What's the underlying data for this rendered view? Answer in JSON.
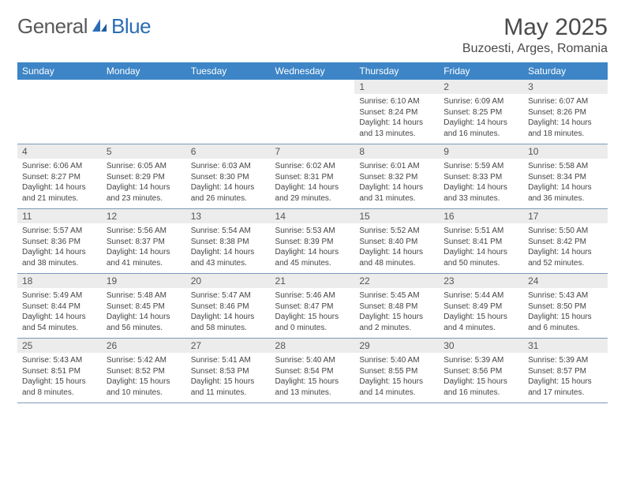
{
  "brand": {
    "general": "General",
    "blue": "Blue"
  },
  "title": "May 2025",
  "location": "Buzoesti, Arges, Romania",
  "colors": {
    "header_bg": "#3d85c6",
    "header_text": "#ffffff",
    "daynum_bg": "#ececec",
    "grid_line": "#7a99b8",
    "body_text": "#444444",
    "logo_gray": "#5a5a5a",
    "logo_blue": "#2a6db5",
    "page_bg": "#ffffff"
  },
  "typography": {
    "title_fontsize": 30,
    "location_fontsize": 16,
    "dow_fontsize": 12,
    "daynum_fontsize": 12,
    "body_fontsize": 10
  },
  "days_of_week": [
    "Sunday",
    "Monday",
    "Tuesday",
    "Wednesday",
    "Thursday",
    "Friday",
    "Saturday"
  ],
  "weeks": [
    [
      {
        "num": "",
        "lines": []
      },
      {
        "num": "",
        "lines": []
      },
      {
        "num": "",
        "lines": []
      },
      {
        "num": "",
        "lines": []
      },
      {
        "num": "1",
        "lines": [
          "Sunrise: 6:10 AM",
          "Sunset: 8:24 PM",
          "Daylight: 14 hours",
          "and 13 minutes."
        ]
      },
      {
        "num": "2",
        "lines": [
          "Sunrise: 6:09 AM",
          "Sunset: 8:25 PM",
          "Daylight: 14 hours",
          "and 16 minutes."
        ]
      },
      {
        "num": "3",
        "lines": [
          "Sunrise: 6:07 AM",
          "Sunset: 8:26 PM",
          "Daylight: 14 hours",
          "and 18 minutes."
        ]
      }
    ],
    [
      {
        "num": "4",
        "lines": [
          "Sunrise: 6:06 AM",
          "Sunset: 8:27 PM",
          "Daylight: 14 hours",
          "and 21 minutes."
        ]
      },
      {
        "num": "5",
        "lines": [
          "Sunrise: 6:05 AM",
          "Sunset: 8:29 PM",
          "Daylight: 14 hours",
          "and 23 minutes."
        ]
      },
      {
        "num": "6",
        "lines": [
          "Sunrise: 6:03 AM",
          "Sunset: 8:30 PM",
          "Daylight: 14 hours",
          "and 26 minutes."
        ]
      },
      {
        "num": "7",
        "lines": [
          "Sunrise: 6:02 AM",
          "Sunset: 8:31 PM",
          "Daylight: 14 hours",
          "and 29 minutes."
        ]
      },
      {
        "num": "8",
        "lines": [
          "Sunrise: 6:01 AM",
          "Sunset: 8:32 PM",
          "Daylight: 14 hours",
          "and 31 minutes."
        ]
      },
      {
        "num": "9",
        "lines": [
          "Sunrise: 5:59 AM",
          "Sunset: 8:33 PM",
          "Daylight: 14 hours",
          "and 33 minutes."
        ]
      },
      {
        "num": "10",
        "lines": [
          "Sunrise: 5:58 AM",
          "Sunset: 8:34 PM",
          "Daylight: 14 hours",
          "and 36 minutes."
        ]
      }
    ],
    [
      {
        "num": "11",
        "lines": [
          "Sunrise: 5:57 AM",
          "Sunset: 8:36 PM",
          "Daylight: 14 hours",
          "and 38 minutes."
        ]
      },
      {
        "num": "12",
        "lines": [
          "Sunrise: 5:56 AM",
          "Sunset: 8:37 PM",
          "Daylight: 14 hours",
          "and 41 minutes."
        ]
      },
      {
        "num": "13",
        "lines": [
          "Sunrise: 5:54 AM",
          "Sunset: 8:38 PM",
          "Daylight: 14 hours",
          "and 43 minutes."
        ]
      },
      {
        "num": "14",
        "lines": [
          "Sunrise: 5:53 AM",
          "Sunset: 8:39 PM",
          "Daylight: 14 hours",
          "and 45 minutes."
        ]
      },
      {
        "num": "15",
        "lines": [
          "Sunrise: 5:52 AM",
          "Sunset: 8:40 PM",
          "Daylight: 14 hours",
          "and 48 minutes."
        ]
      },
      {
        "num": "16",
        "lines": [
          "Sunrise: 5:51 AM",
          "Sunset: 8:41 PM",
          "Daylight: 14 hours",
          "and 50 minutes."
        ]
      },
      {
        "num": "17",
        "lines": [
          "Sunrise: 5:50 AM",
          "Sunset: 8:42 PM",
          "Daylight: 14 hours",
          "and 52 minutes."
        ]
      }
    ],
    [
      {
        "num": "18",
        "lines": [
          "Sunrise: 5:49 AM",
          "Sunset: 8:44 PM",
          "Daylight: 14 hours",
          "and 54 minutes."
        ]
      },
      {
        "num": "19",
        "lines": [
          "Sunrise: 5:48 AM",
          "Sunset: 8:45 PM",
          "Daylight: 14 hours",
          "and 56 minutes."
        ]
      },
      {
        "num": "20",
        "lines": [
          "Sunrise: 5:47 AM",
          "Sunset: 8:46 PM",
          "Daylight: 14 hours",
          "and 58 minutes."
        ]
      },
      {
        "num": "21",
        "lines": [
          "Sunrise: 5:46 AM",
          "Sunset: 8:47 PM",
          "Daylight: 15 hours",
          "and 0 minutes."
        ]
      },
      {
        "num": "22",
        "lines": [
          "Sunrise: 5:45 AM",
          "Sunset: 8:48 PM",
          "Daylight: 15 hours",
          "and 2 minutes."
        ]
      },
      {
        "num": "23",
        "lines": [
          "Sunrise: 5:44 AM",
          "Sunset: 8:49 PM",
          "Daylight: 15 hours",
          "and 4 minutes."
        ]
      },
      {
        "num": "24",
        "lines": [
          "Sunrise: 5:43 AM",
          "Sunset: 8:50 PM",
          "Daylight: 15 hours",
          "and 6 minutes."
        ]
      }
    ],
    [
      {
        "num": "25",
        "lines": [
          "Sunrise: 5:43 AM",
          "Sunset: 8:51 PM",
          "Daylight: 15 hours",
          "and 8 minutes."
        ]
      },
      {
        "num": "26",
        "lines": [
          "Sunrise: 5:42 AM",
          "Sunset: 8:52 PM",
          "Daylight: 15 hours",
          "and 10 minutes."
        ]
      },
      {
        "num": "27",
        "lines": [
          "Sunrise: 5:41 AM",
          "Sunset: 8:53 PM",
          "Daylight: 15 hours",
          "and 11 minutes."
        ]
      },
      {
        "num": "28",
        "lines": [
          "Sunrise: 5:40 AM",
          "Sunset: 8:54 PM",
          "Daylight: 15 hours",
          "and 13 minutes."
        ]
      },
      {
        "num": "29",
        "lines": [
          "Sunrise: 5:40 AM",
          "Sunset: 8:55 PM",
          "Daylight: 15 hours",
          "and 14 minutes."
        ]
      },
      {
        "num": "30",
        "lines": [
          "Sunrise: 5:39 AM",
          "Sunset: 8:56 PM",
          "Daylight: 15 hours",
          "and 16 minutes."
        ]
      },
      {
        "num": "31",
        "lines": [
          "Sunrise: 5:39 AM",
          "Sunset: 8:57 PM",
          "Daylight: 15 hours",
          "and 17 minutes."
        ]
      }
    ]
  ]
}
